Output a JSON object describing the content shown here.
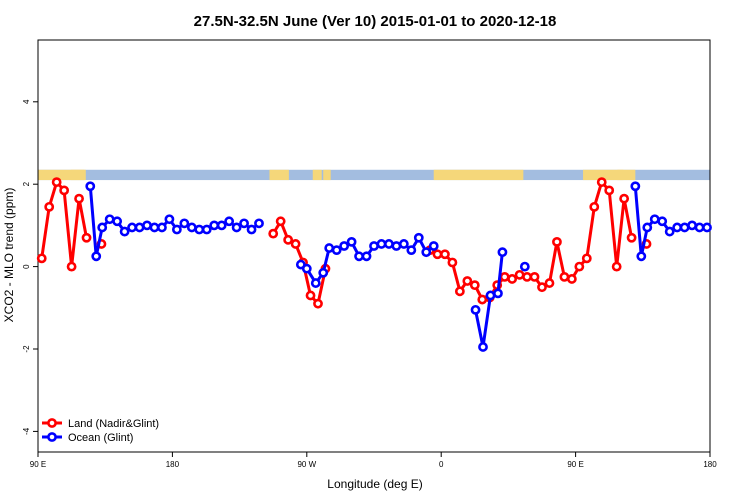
{
  "chart_data": {
    "type": "line",
    "title": "27.5N-32.5N June (Ver 10)   2015-01-01 to 2020-12-18",
    "xlabel": "Longitude (deg E)",
    "ylabel": "XCO2 - MLO trend (ppm)",
    "xlim": [
      90,
      540
    ],
    "ylim": [
      -4.5,
      5.5
    ],
    "x_ticks": [
      {
        "value": 90,
        "label": "90 E"
      },
      {
        "value": 180,
        "label": "180"
      },
      {
        "value": 270,
        "label": "90 W"
      },
      {
        "value": 360,
        "label": "0"
      },
      {
        "value": 450,
        "label": "90 E"
      },
      {
        "value": 540,
        "label": "180"
      }
    ],
    "y_ticks": [
      {
        "value": -4,
        "label": "-4"
      },
      {
        "value": -2,
        "label": "-2"
      },
      {
        "value": 0,
        "label": "0"
      },
      {
        "value": 2,
        "label": "2"
      },
      {
        "value": 4,
        "label": "4"
      }
    ],
    "land_sea_band": {
      "y_range": [
        2.1,
        2.35
      ],
      "land_color": "#f5d77a",
      "ocean_color": "#a3bde0",
      "land_segments": [
        [
          90,
          122
        ],
        [
          112,
          121
        ],
        [
          245,
          258
        ],
        [
          274,
          280
        ],
        [
          281,
          286
        ],
        [
          355,
          415
        ],
        [
          455,
          482
        ],
        [
          478,
          490
        ]
      ]
    },
    "series": [
      {
        "name": "Land (Nadir&Glint)",
        "color": "#ff0000",
        "points": [
          [
            92.5,
            0.2
          ],
          [
            97.5,
            1.45
          ],
          [
            102.5,
            2.05
          ],
          [
            107.5,
            1.85
          ],
          [
            112.5,
            0.0
          ],
          [
            117.5,
            1.65
          ],
          [
            122.5,
            0.7
          ],
          null,
          [
            132.5,
            0.55
          ],
          null,
          [
            247.5,
            0.8
          ],
          [
            252.5,
            1.1
          ],
          [
            257.5,
            0.65
          ],
          [
            262.5,
            0.55
          ],
          [
            267.5,
            0.1
          ],
          [
            272.5,
            -0.7
          ],
          [
            277.5,
            -0.9
          ],
          [
            282.5,
            -0.05
          ],
          null,
          [
            352.5,
            0.4
          ],
          [
            357.5,
            0.3
          ],
          [
            362.5,
            0.3
          ],
          [
            367.5,
            0.1
          ],
          [
            372.5,
            -0.6
          ],
          [
            377.5,
            -0.35
          ],
          [
            382.5,
            -0.45
          ],
          [
            387.5,
            -0.8
          ],
          [
            392.5,
            -0.75
          ],
          [
            397.5,
            -0.45
          ],
          [
            402.5,
            -0.25
          ],
          [
            407.5,
            -0.3
          ],
          [
            412.5,
            -0.2
          ],
          [
            417.5,
            -0.25
          ],
          [
            422.5,
            -0.25
          ],
          [
            427.5,
            -0.5
          ],
          [
            432.5,
            -0.4
          ],
          [
            437.5,
            0.6
          ],
          [
            442.5,
            -0.25
          ],
          [
            447.5,
            -0.3
          ],
          [
            452.5,
            0.0
          ],
          [
            457.5,
            0.2
          ],
          [
            462.5,
            1.45
          ],
          [
            467.5,
            2.05
          ],
          [
            472.5,
            1.85
          ],
          [
            477.5,
            0.0
          ],
          [
            482.5,
            1.65
          ],
          [
            487.5,
            0.7
          ],
          null,
          [
            497.5,
            0.55
          ]
        ]
      },
      {
        "name": "Ocean (Glint)",
        "color": "#0000ff",
        "points": [
          [
            125,
            1.95
          ],
          [
            129,
            0.25
          ],
          [
            133,
            0.95
          ],
          [
            138,
            1.15
          ],
          [
            143,
            1.1
          ],
          [
            148,
            0.85
          ],
          [
            153,
            0.95
          ],
          [
            158,
            0.95
          ],
          [
            163,
            1.0
          ],
          [
            168,
            0.95
          ],
          [
            173,
            0.95
          ],
          [
            178,
            1.15
          ],
          [
            183,
            0.9
          ],
          [
            188,
            1.05
          ],
          [
            193,
            0.95
          ],
          [
            198,
            0.9
          ],
          [
            203,
            0.9
          ],
          [
            208,
            1.0
          ],
          [
            213,
            1.0
          ],
          [
            218,
            1.1
          ],
          [
            223,
            0.95
          ],
          [
            228,
            1.05
          ],
          [
            233,
            0.9
          ],
          [
            238,
            1.05
          ],
          null,
          [
            266,
            0.05
          ],
          [
            270,
            -0.05
          ],
          [
            276,
            -0.4
          ],
          [
            281,
            -0.15
          ],
          [
            285,
            0.45
          ],
          [
            290,
            0.4
          ],
          [
            295,
            0.5
          ],
          [
            300,
            0.6
          ],
          [
            305,
            0.25
          ],
          [
            310,
            0.25
          ],
          [
            315,
            0.5
          ],
          [
            320,
            0.55
          ],
          [
            325,
            0.55
          ],
          [
            330,
            0.5
          ],
          [
            335,
            0.55
          ],
          [
            340,
            0.4
          ],
          [
            345,
            0.7
          ],
          [
            350,
            0.35
          ],
          [
            355,
            0.5
          ],
          null,
          [
            383,
            -1.05
          ],
          [
            388,
            -1.95
          ],
          [
            393,
            -0.7
          ],
          [
            398,
            -0.65
          ],
          [
            401,
            0.35
          ],
          null,
          [
            416,
            0.0
          ],
          null,
          [
            490,
            1.95
          ],
          [
            494,
            0.25
          ],
          [
            498,
            0.95
          ],
          [
            503,
            1.15
          ],
          [
            508,
            1.1
          ],
          [
            513,
            0.85
          ],
          [
            518,
            0.95
          ],
          [
            523,
            0.95
          ],
          [
            528,
            1.0
          ],
          [
            533,
            0.95
          ],
          [
            538,
            0.95
          ]
        ]
      }
    ],
    "legend": {
      "position": "bottom-left",
      "entries": [
        {
          "label": "Land (Nadir&Glint)",
          "color": "#ff0000"
        },
        {
          "label": "Ocean (Glint)",
          "color": "#0000ff"
        }
      ]
    }
  }
}
